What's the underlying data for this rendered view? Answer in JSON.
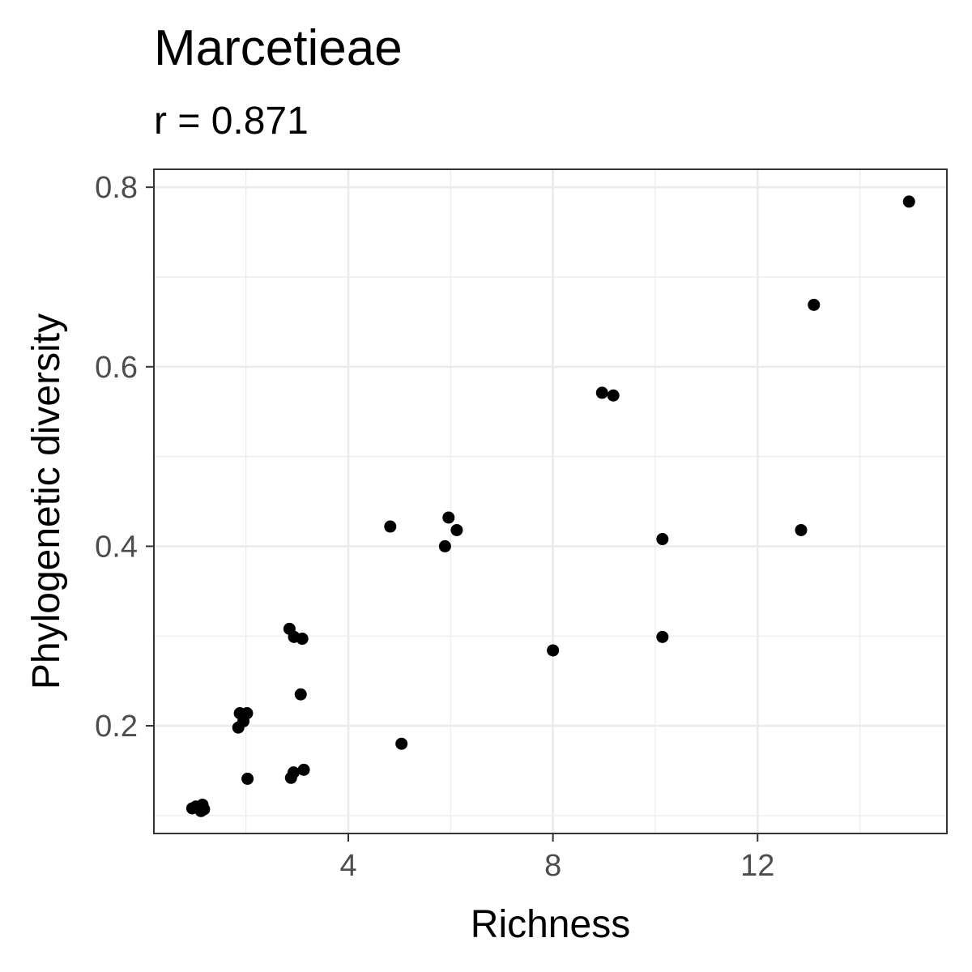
{
  "chart_data": {
    "type": "scatter",
    "title": "Marcetieae",
    "subtitle": "r = 0.871",
    "xlabel": "Richness",
    "ylabel": "Phylogenetic diversity",
    "xlim": [
      0.2,
      15.7
    ],
    "ylim": [
      0.08,
      0.82
    ],
    "x_ticks": [
      4,
      8,
      12
    ],
    "x_tick_labels": [
      "4",
      "8",
      "12"
    ],
    "x_minor_ticks": [
      2,
      6,
      10,
      14
    ],
    "y_ticks": [
      0.2,
      0.4,
      0.6,
      0.8
    ],
    "y_tick_labels": [
      "0.2",
      "0.4",
      "0.6",
      "0.8"
    ],
    "y_minor_ticks": [
      0.1,
      0.3,
      0.5,
      0.7
    ],
    "grid": true,
    "legend": "none",
    "point_color": "#000000",
    "points": [
      {
        "x": 0.95,
        "y": 0.108
      },
      {
        "x": 1.02,
        "y": 0.11
      },
      {
        "x": 1.08,
        "y": 0.109
      },
      {
        "x": 1.15,
        "y": 0.112
      },
      {
        "x": 1.18,
        "y": 0.107
      },
      {
        "x": 1.12,
        "y": 0.105
      },
      {
        "x": 1.85,
        "y": 0.198
      },
      {
        "x": 1.95,
        "y": 0.205
      },
      {
        "x": 1.88,
        "y": 0.214
      },
      {
        "x": 2.02,
        "y": 0.214
      },
      {
        "x": 2.03,
        "y": 0.141
      },
      {
        "x": 2.85,
        "y": 0.308
      },
      {
        "x": 2.94,
        "y": 0.299
      },
      {
        "x": 3.1,
        "y": 0.297
      },
      {
        "x": 3.07,
        "y": 0.235
      },
      {
        "x": 2.88,
        "y": 0.142
      },
      {
        "x": 2.93,
        "y": 0.148
      },
      {
        "x": 3.13,
        "y": 0.151
      },
      {
        "x": 4.82,
        "y": 0.422
      },
      {
        "x": 5.04,
        "y": 0.18
      },
      {
        "x": 5.89,
        "y": 0.4
      },
      {
        "x": 5.96,
        "y": 0.432
      },
      {
        "x": 6.12,
        "y": 0.418
      },
      {
        "x": 8.0,
        "y": 0.284
      },
      {
        "x": 8.96,
        "y": 0.571
      },
      {
        "x": 9.18,
        "y": 0.568
      },
      {
        "x": 10.14,
        "y": 0.408
      },
      {
        "x": 10.14,
        "y": 0.299
      },
      {
        "x": 12.85,
        "y": 0.418
      },
      {
        "x": 13.1,
        "y": 0.669
      },
      {
        "x": 14.96,
        "y": 0.784
      }
    ]
  }
}
